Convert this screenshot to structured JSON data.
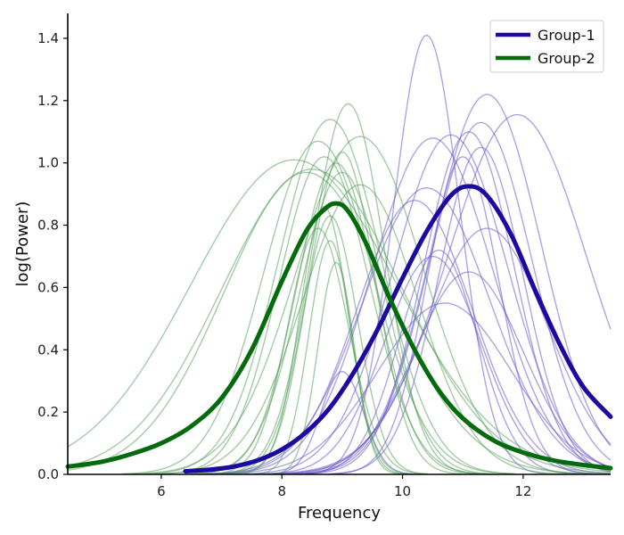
{
  "chart_data": {
    "type": "line",
    "xlabel": "Frequency",
    "ylabel": "log(Power)",
    "xlim": [
      4.45,
      13.45
    ],
    "ylim": [
      0.0,
      1.48
    ],
    "xticks": [
      6,
      8,
      10,
      12
    ],
    "yticks": [
      0.0,
      0.2,
      0.4,
      0.6,
      0.8,
      1.0,
      1.2,
      1.4
    ],
    "xtick_labels": [
      "6",
      "8",
      "10",
      "12"
    ],
    "ytick_labels": [
      "0.0",
      "0.2",
      "0.4",
      "0.6",
      "0.8",
      "1.0",
      "1.2",
      "1.4"
    ],
    "grid": false,
    "legend_position": "top-right",
    "series": [
      {
        "name": "Group-1",
        "color": "#1c0aa0",
        "x": [
          6.4,
          6.8,
          7.2,
          7.6,
          8.0,
          8.4,
          8.8,
          9.2,
          9.6,
          10.0,
          10.4,
          10.8,
          11.1,
          11.4,
          11.8,
          12.2,
          12.6,
          13.0,
          13.45
        ],
        "y": [
          0.01,
          0.015,
          0.025,
          0.045,
          0.08,
          0.135,
          0.215,
          0.33,
          0.47,
          0.63,
          0.78,
          0.895,
          0.925,
          0.895,
          0.77,
          0.59,
          0.42,
          0.28,
          0.185
        ]
      },
      {
        "name": "Group-2",
        "color": "#036b0b",
        "x": [
          4.45,
          5.0,
          5.5,
          6.0,
          6.5,
          7.0,
          7.5,
          8.0,
          8.4,
          8.7,
          8.9,
          9.1,
          9.4,
          9.8,
          10.2,
          10.6,
          11.0,
          11.5,
          12.0,
          12.5,
          13.0,
          13.45
        ],
        "y": [
          0.025,
          0.04,
          0.065,
          0.1,
          0.155,
          0.245,
          0.4,
          0.62,
          0.78,
          0.85,
          0.87,
          0.845,
          0.74,
          0.56,
          0.4,
          0.27,
          0.18,
          0.11,
          0.07,
          0.045,
          0.03,
          0.02
        ]
      }
    ],
    "background_curves": {
      "Group-1": [
        {
          "peak_x": 10.4,
          "peak_y": 1.41
        },
        {
          "peak_x": 11.4,
          "peak_y": 1.22
        },
        {
          "peak_x": 11.9,
          "peak_y": 1.155
        },
        {
          "peak_x": 11.3,
          "peak_y": 1.13
        },
        {
          "peak_x": 10.8,
          "peak_y": 1.09
        },
        {
          "peak_x": 10.5,
          "peak_y": 1.08
        },
        {
          "peak_x": 11.1,
          "peak_y": 1.1
        },
        {
          "peak_x": 11.3,
          "peak_y": 1.05
        },
        {
          "peak_x": 11.0,
          "peak_y": 1.02
        },
        {
          "peak_x": 10.4,
          "peak_y": 0.92
        },
        {
          "peak_x": 11.4,
          "peak_y": 0.79
        },
        {
          "peak_x": 10.6,
          "peak_y": 0.72
        },
        {
          "peak_x": 10.5,
          "peak_y": 0.7
        },
        {
          "peak_x": 11.1,
          "peak_y": 0.65
        },
        {
          "peak_x": 10.7,
          "peak_y": 0.55
        },
        {
          "peak_x": 10.2,
          "peak_y": 0.88
        },
        {
          "peak_x": 9.0,
          "peak_y": 0.33
        }
      ],
      "Group-2": [
        {
          "peak_x": 8.8,
          "peak_y": 1.14
        },
        {
          "peak_x": 9.1,
          "peak_y": 1.19
        },
        {
          "peak_x": 9.3,
          "peak_y": 1.085
        },
        {
          "peak_x": 8.6,
          "peak_y": 1.07
        },
        {
          "peak_x": 8.2,
          "peak_y": 1.01
        },
        {
          "peak_x": 9.0,
          "peak_y": 1.035
        },
        {
          "peak_x": 8.7,
          "peak_y": 1.02
        },
        {
          "peak_x": 8.9,
          "peak_y": 1.0
        },
        {
          "peak_x": 8.5,
          "peak_y": 0.98
        },
        {
          "peak_x": 9.0,
          "peak_y": 0.97
        },
        {
          "peak_x": 8.4,
          "peak_y": 0.97
        },
        {
          "peak_x": 8.7,
          "peak_y": 0.86
        },
        {
          "peak_x": 8.8,
          "peak_y": 0.83
        },
        {
          "peak_x": 8.6,
          "peak_y": 0.79
        },
        {
          "peak_x": 8.8,
          "peak_y": 0.75
        },
        {
          "peak_x": 8.9,
          "peak_y": 0.68
        },
        {
          "peak_x": 9.3,
          "peak_y": 0.93
        }
      ]
    }
  }
}
